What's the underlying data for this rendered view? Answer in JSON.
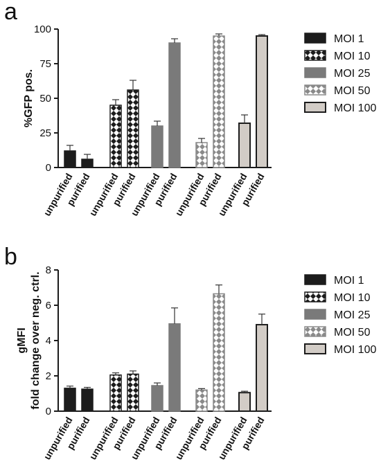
{
  "colors": {
    "moi1_fill": "#1c1c1c",
    "moi10_fill": "#ffffff",
    "moi10_pattern": "#1c1c1c",
    "moi25_fill": "#7a7a7a",
    "moi50_fill": "#ffffff",
    "moi50_pattern": "#888888",
    "moi100_fill": "#d2ccc6",
    "axis": "#1a1a1a"
  },
  "chart_data": [
    {
      "panel_label": "a",
      "type": "bar",
      "ylabel": "%GFP pos.",
      "ylabel_lines": [
        "%GFP pos."
      ],
      "ylim": [
        0,
        100
      ],
      "yticks": [
        0,
        25,
        50,
        75,
        100
      ],
      "ytick_labels": [
        "0",
        "25",
        "50",
        "75",
        "100"
      ],
      "categories": [
        "unpurified",
        "purified"
      ],
      "legend": {
        "placement": "right",
        "entries": [
          "MOI 1",
          "MOI 10",
          "MOI 25",
          "MOI 50",
          "MOI 100"
        ]
      },
      "series": [
        {
          "name": "MOI 1",
          "values": [
            12,
            6
          ],
          "errors": [
            4,
            3.5
          ]
        },
        {
          "name": "MOI 10",
          "values": [
            45,
            56
          ],
          "errors": [
            4,
            7
          ]
        },
        {
          "name": "MOI 25",
          "values": [
            30,
            90
          ],
          "errors": [
            3.5,
            3
          ]
        },
        {
          "name": "MOI 50",
          "values": [
            18,
            95
          ],
          "errors": [
            3,
            1.5
          ]
        },
        {
          "name": "MOI 100",
          "values": [
            32,
            95
          ],
          "errors": [
            6,
            1
          ]
        }
      ]
    },
    {
      "panel_label": "b",
      "type": "bar",
      "ylabel": "gMFI fold change over neg. ctrl.",
      "ylabel_lines": [
        "gMFI",
        "fold change over neg. ctrl."
      ],
      "ylim": [
        0,
        8
      ],
      "yticks": [
        0,
        2,
        4,
        6,
        8
      ],
      "ytick_labels": [
        "0",
        "2",
        "4",
        "6",
        "8"
      ],
      "categories": [
        "unpurified",
        "purified"
      ],
      "legend": {
        "placement": "right",
        "entries": [
          "MOI 1",
          "MOI 10",
          "MOI 25",
          "MOI 50",
          "MOI 100"
        ]
      },
      "series": [
        {
          "name": "MOI 1",
          "values": [
            1.3,
            1.25
          ],
          "errors": [
            0.12,
            0.1
          ]
        },
        {
          "name": "MOI 10",
          "values": [
            2.05,
            2.1
          ],
          "errors": [
            0.12,
            0.18
          ]
        },
        {
          "name": "MOI 25",
          "values": [
            1.45,
            4.95
          ],
          "errors": [
            0.15,
            0.9
          ]
        },
        {
          "name": "MOI 50",
          "values": [
            1.2,
            6.65
          ],
          "errors": [
            0.08,
            0.5
          ]
        },
        {
          "name": "MOI 100",
          "values": [
            1.05,
            4.9
          ],
          "errors": [
            0.08,
            0.6
          ]
        }
      ]
    }
  ]
}
